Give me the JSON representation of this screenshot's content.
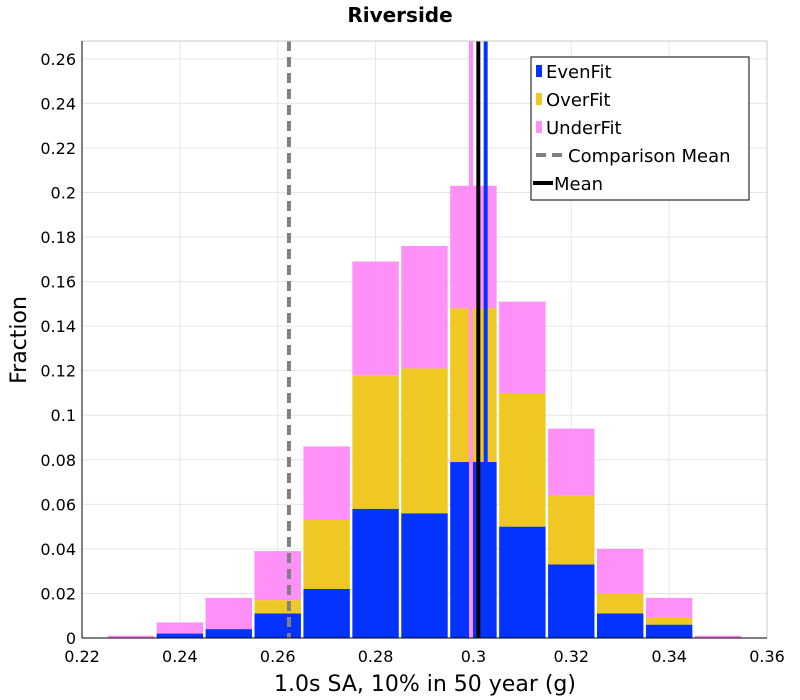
{
  "chart_data": {
    "type": "bar",
    "stacked": true,
    "title": "Riverside",
    "xlabel": "1.0s SA, 10% in 50 year (g)",
    "ylabel": "Fraction",
    "xlim": [
      0.22,
      0.36
    ],
    "ylim": [
      0,
      0.268
    ],
    "xticks": [
      "0.22",
      "0.24",
      "0.26",
      "0.28",
      "0.3",
      "0.32",
      "0.34",
      "0.36"
    ],
    "yticks": [
      "0",
      "0.02",
      "0.04",
      "0.06",
      "0.08",
      "0.1",
      "0.12",
      "0.14",
      "0.16",
      "0.18",
      "0.2",
      "0.22",
      "0.24",
      "0.26"
    ],
    "grid": true,
    "legend_position": "top-right",
    "bin_centers": [
      0.23,
      0.24,
      0.25,
      0.26,
      0.27,
      0.28,
      0.29,
      0.3,
      0.31,
      0.32,
      0.33,
      0.34,
      0.35
    ],
    "bin_width": 0.01,
    "series": [
      {
        "name": "EvenFit",
        "color": "#0433ff",
        "values": [
          0.0,
          0.002,
          0.004,
          0.011,
          0.022,
          0.058,
          0.056,
          0.079,
          0.05,
          0.033,
          0.011,
          0.006,
          0.0
        ]
      },
      {
        "name": "OverFit",
        "color": "#f0c823",
        "values": [
          0.0,
          0.0,
          0.0,
          0.006,
          0.031,
          0.06,
          0.065,
          0.069,
          0.06,
          0.031,
          0.009,
          0.003,
          0.0
        ]
      },
      {
        "name": "UnderFit",
        "color": "#ff90f8",
        "values": [
          0.001,
          0.005,
          0.014,
          0.022,
          0.033,
          0.051,
          0.055,
          0.055,
          0.041,
          0.03,
          0.02,
          0.009,
          0.001
        ]
      }
    ],
    "lines": [
      {
        "name": "Comparison Mean",
        "x": 0.2623,
        "color": "#808080",
        "style": "dashed"
      },
      {
        "name": "Mean",
        "x": 0.301,
        "color": "#000000",
        "style": "solid"
      }
    ],
    "mean_markers": [
      {
        "x": 0.2995,
        "color": "#ff90f8"
      },
      {
        "x": 0.3025,
        "color": "#0433ff"
      }
    ]
  }
}
